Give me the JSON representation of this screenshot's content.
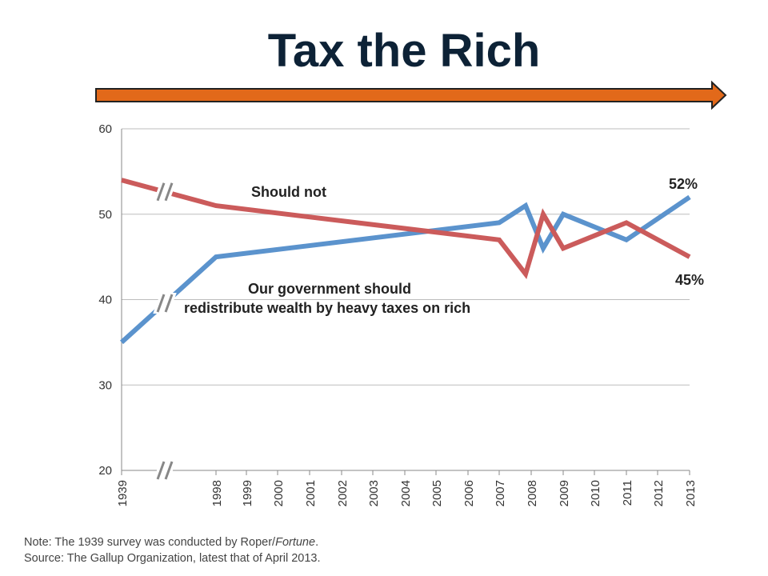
{
  "title": "Tax the Rich",
  "colors": {
    "title": "#0d2236",
    "arrow": "#e2691a",
    "series_redistribute": "#5b93cd",
    "series_should_not": "#cb5b5b"
  },
  "chart_data": {
    "type": "line",
    "title": "",
    "xlabel": "",
    "ylabel": "",
    "ylim": [
      20,
      60
    ],
    "yticks": [
      20,
      30,
      40,
      50,
      60
    ],
    "grid": true,
    "x_categories": [
      "1939",
      "1998",
      "1999",
      "2000",
      "2001",
      "2002",
      "2003",
      "2004",
      "2005",
      "2006",
      "2007",
      "2008",
      "2009",
      "2010",
      "2011",
      "2012",
      "2013"
    ],
    "series": [
      {
        "name": "Our government should redistribute wealth by heavy taxes on rich",
        "color": "#5b93cd",
        "points": [
          {
            "x": "1939",
            "y": 35
          },
          {
            "x": "1998",
            "y": 45
          },
          {
            "x": "2007",
            "y": 49
          },
          {
            "x": "2008",
            "y": 51
          },
          {
            "x": "2008",
            "y": 46
          },
          {
            "x": "2009",
            "y": 50
          },
          {
            "x": "2011",
            "y": 47
          },
          {
            "x": "2013",
            "y": 52
          }
        ]
      },
      {
        "name": "Should not",
        "color": "#cb5b5b",
        "points": [
          {
            "x": "1939",
            "y": 54
          },
          {
            "x": "1998",
            "y": 51
          },
          {
            "x": "2007",
            "y": 47
          },
          {
            "x": "2008",
            "y": 43
          },
          {
            "x": "2008",
            "y": 50
          },
          {
            "x": "2009",
            "y": 46
          },
          {
            "x": "2011",
            "y": 49
          },
          {
            "x": "2013",
            "y": 45
          }
        ]
      }
    ],
    "annotations": {
      "should_not": "Should not",
      "redistribute_line1": "Our government should",
      "redistribute_line2": "redistribute wealth by heavy taxes on rich",
      "end_blue": "52%",
      "end_red": "45%"
    }
  },
  "notes": {
    "note_prefix": "Note: The 1939 survey was conducted by Roper/",
    "note_italic": "Fortune",
    "note_suffix": ".",
    "source": "Source: The Gallup Organization, latest that of April 2013."
  }
}
